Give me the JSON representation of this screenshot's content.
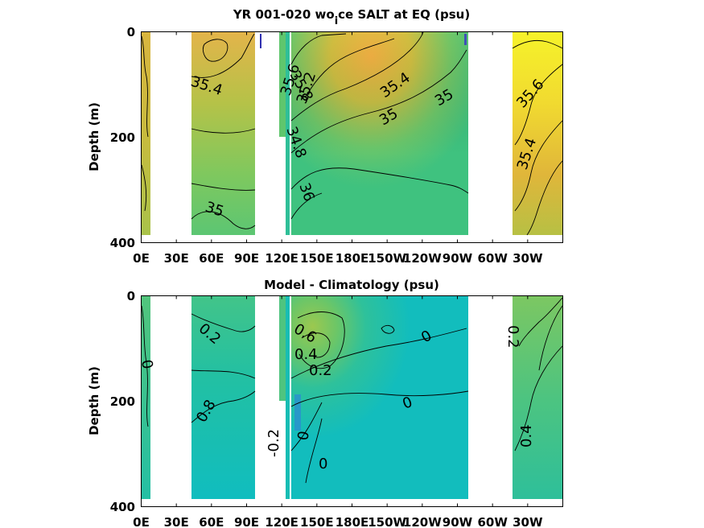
{
  "chart_data": [
    {
      "type": "heatmap",
      "title_main": "YR 001-020 wo",
      "title_sub": "i",
      "title_rest": "ce SALT at EQ (psu)",
      "ylabel": "Depth (m)",
      "y_ticks": [
        "0",
        "200",
        "400"
      ],
      "x_ticks": [
        "0E",
        "30E",
        "60E",
        "90E",
        "120E",
        "150E",
        "180E",
        "150W",
        "120W",
        "90W",
        "60W",
        "30W"
      ],
      "ylim": [
        0,
        400
      ],
      "xlim_deg_east": [
        0,
        360
      ],
      "units": "psu",
      "contour_levels_labeled": [
        "35.4",
        "35",
        "35.8",
        "35.6",
        "35.2",
        "35.4",
        "35",
        "35",
        "34.8",
        "36",
        "35.6",
        "35.4"
      ],
      "colormap": [
        "#2bb5a5",
        "#44c17d",
        "#8cc95a",
        "#c6c840",
        "#f0b445",
        "#f8f22a"
      ]
    },
    {
      "type": "heatmap",
      "title": "Model - Climatology (psu)",
      "ylabel": "Depth (m)",
      "y_ticks": [
        "0",
        "200",
        "400"
      ],
      "x_ticks": [
        "0E",
        "30E",
        "60E",
        "90E",
        "120E",
        "150E",
        "180E",
        "150W",
        "120W",
        "90W",
        "60W",
        "30W"
      ],
      "ylim": [
        0,
        400
      ],
      "xlim_deg_east": [
        0,
        360
      ],
      "units": "psu",
      "contour_levels_labeled": [
        "0.2",
        "0",
        "0.8",
        "0.6",
        "0.4",
        "0.2",
        "0",
        "0",
        "-0.2",
        "0",
        "0",
        "0.2",
        "0.4"
      ],
      "colormap": [
        "#2a8fd0",
        "#10bfbc",
        "#3ec48a",
        "#8cc95a",
        "#c0c94a"
      ]
    }
  ]
}
